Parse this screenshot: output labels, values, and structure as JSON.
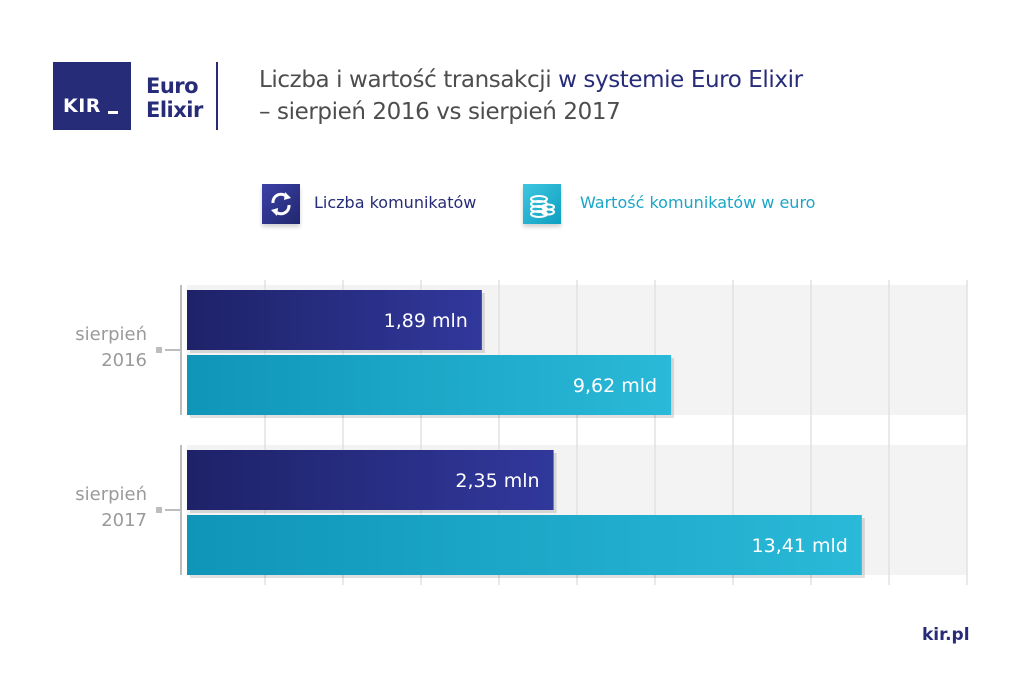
{
  "brand": {
    "logo_text": "KIR",
    "product_line1": "Euro",
    "product_line2": "Elixir",
    "brand_color": "#272c78",
    "accent_color": "#1aa6c8"
  },
  "header": {
    "title_part1": "Liczba i wartość transakcji ",
    "title_part2": "w systemie Euro Elixir",
    "title_line2": "– sierpień 2016 vs sierpień 2017"
  },
  "legend": {
    "count_label": "Liczba komunikatów",
    "count_icon": "refresh-arrows-icon",
    "value_label": "Wartość komunikatów w euro",
    "value_icon": "coin-stack-icon"
  },
  "footer": {
    "text": "kir.pl"
  },
  "chart_data": {
    "type": "bar",
    "orientation": "horizontal",
    "categories": [
      "sierpień 2016",
      "sierpień 2017"
    ],
    "category_lines": [
      [
        "sierpień",
        "2016"
      ],
      [
        "sierpień",
        "2017"
      ]
    ],
    "series": [
      {
        "name": "Liczba komunikatów",
        "values": [
          1.89,
          2.35
        ],
        "unit": "mln",
        "labels": [
          "1,89 mln",
          "2,35 mln"
        ],
        "scale_max": 5,
        "color": "#272c78"
      },
      {
        "name": "Wartość komunikatów w euro",
        "values": [
          9.62,
          13.41
        ],
        "unit": "mld",
        "labels": [
          "9,62 mld",
          "13,41 mld"
        ],
        "scale_max": 15.5,
        "color": "#1aa6c8"
      }
    ],
    "grid": true,
    "legend_position": "top"
  }
}
